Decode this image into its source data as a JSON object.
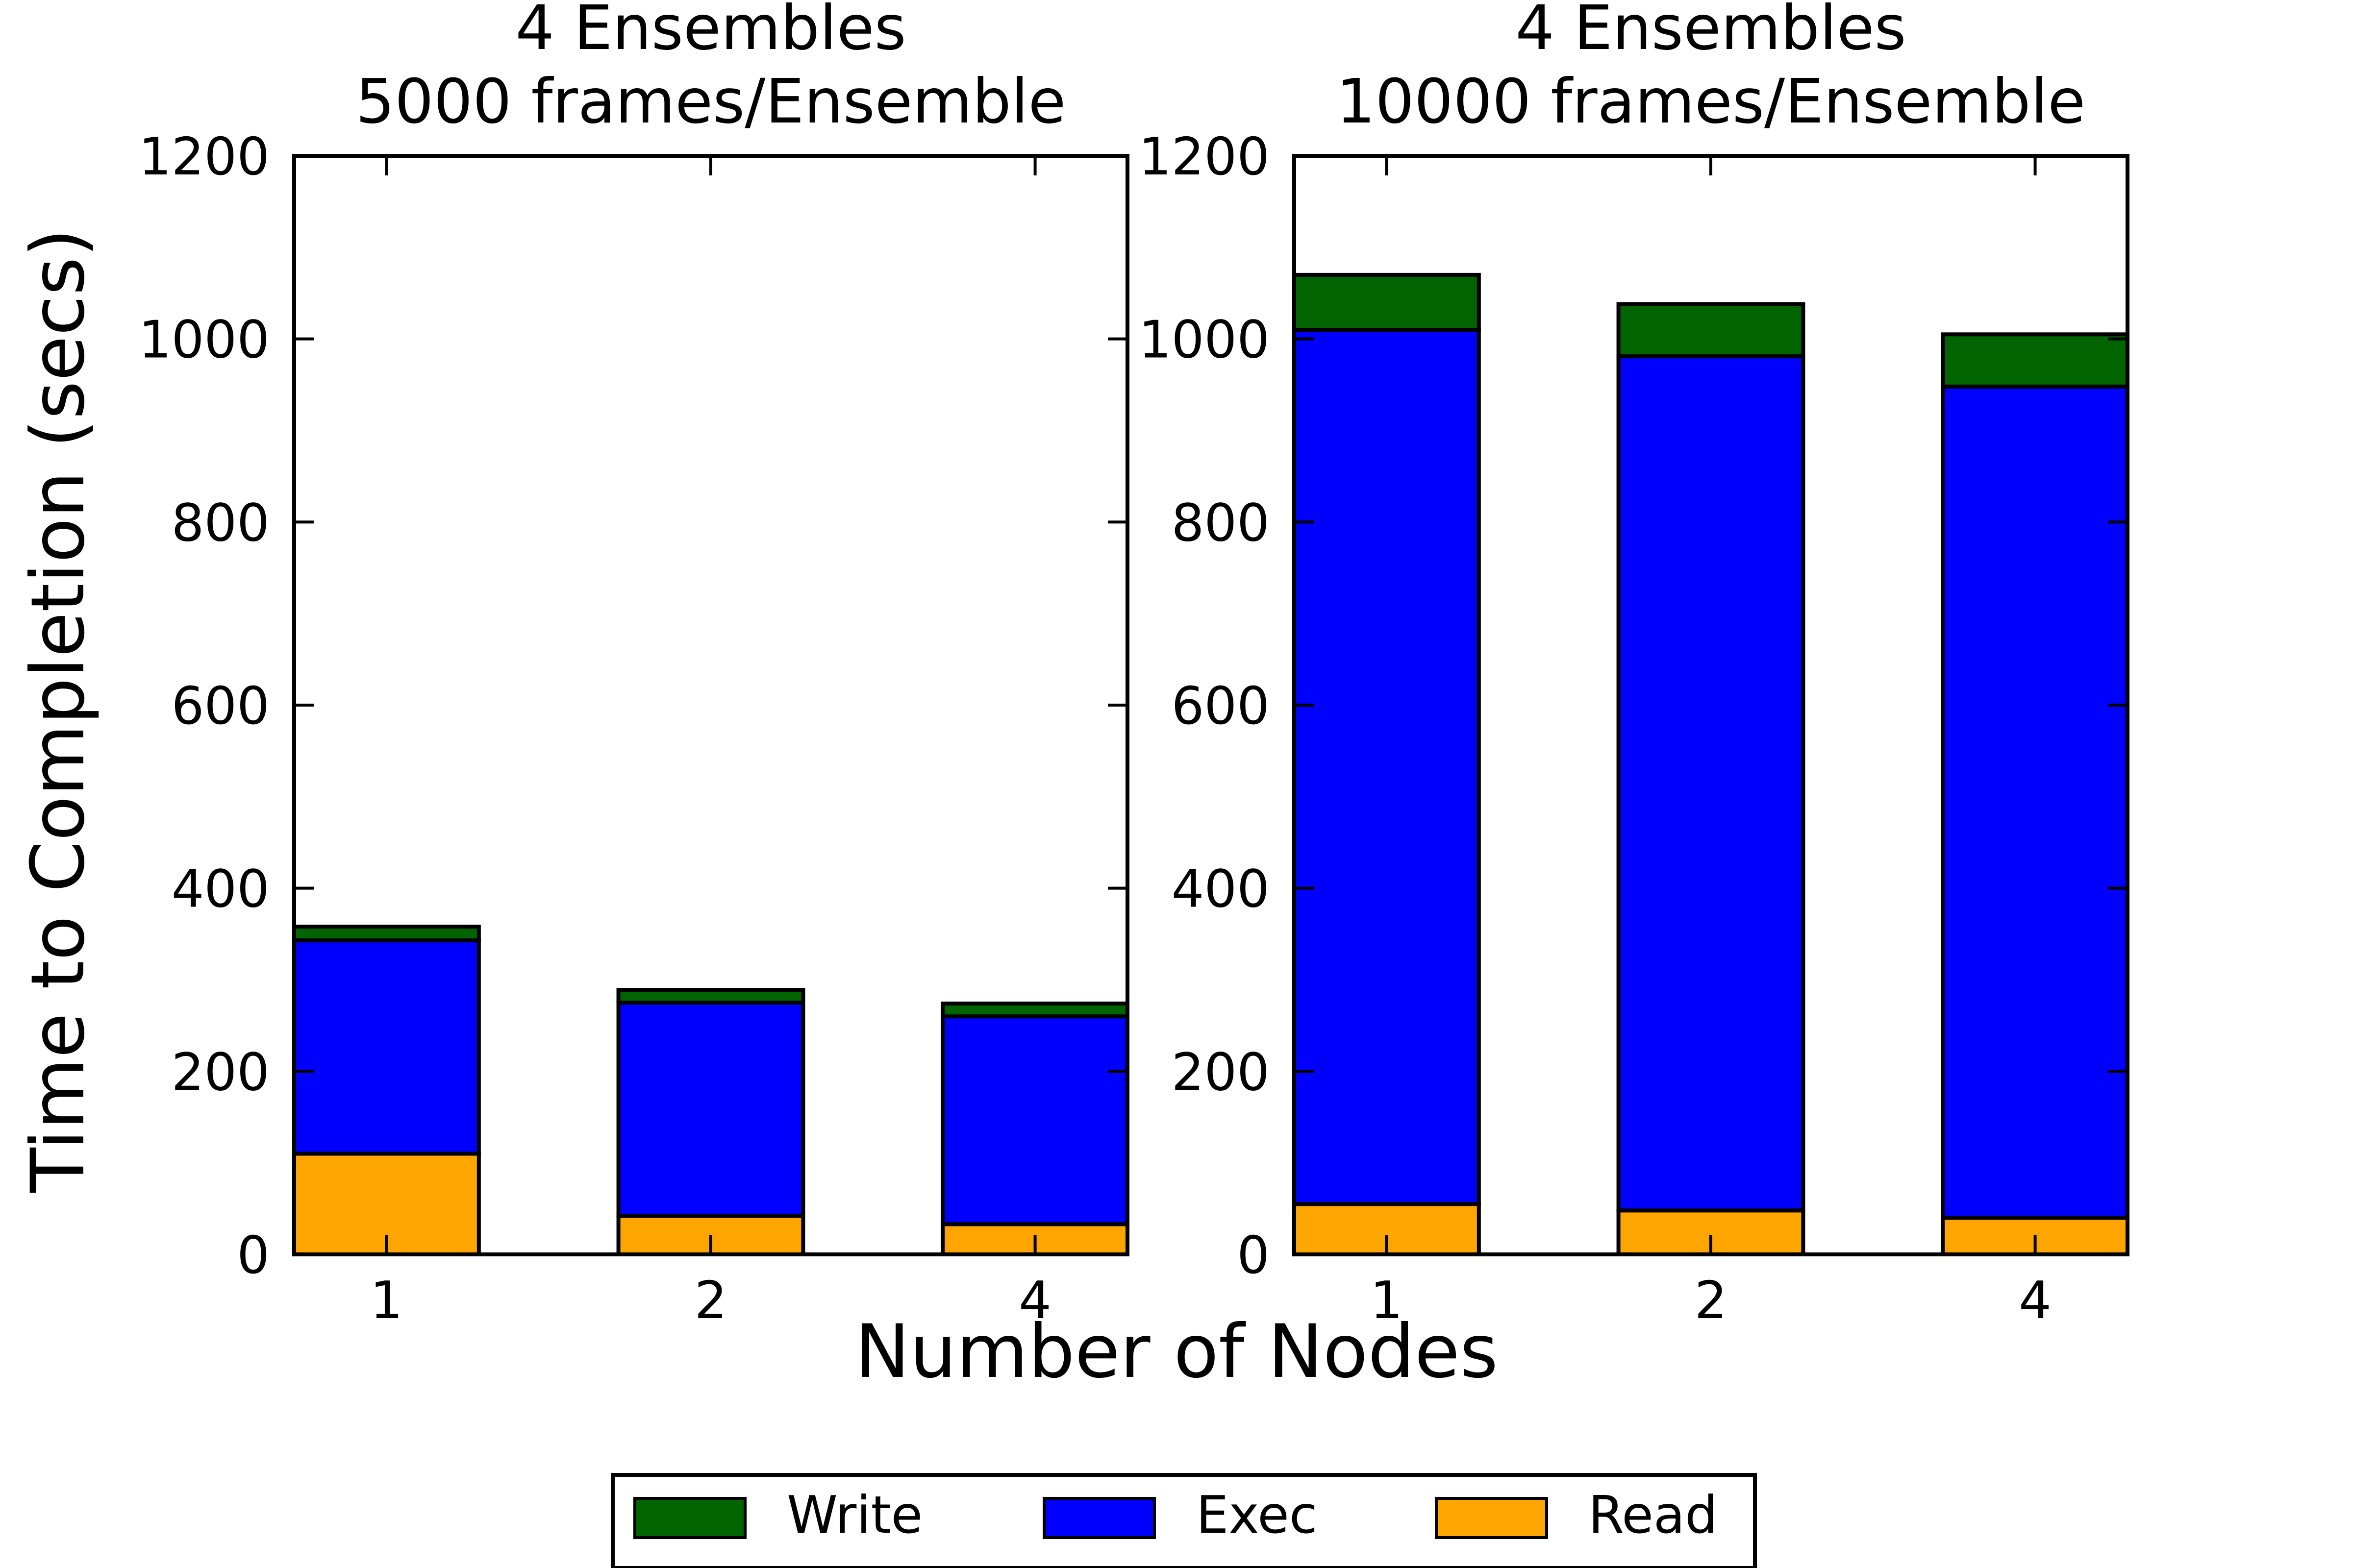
{
  "figure": {
    "ylabel": "Time to Completion (secs)",
    "xlabel": "Number of Nodes"
  },
  "legend": {
    "placement": "bottom-center",
    "entries": [
      {
        "label": "Write",
        "color": "#006400"
      },
      {
        "label": "Exec",
        "color": "#0000ff"
      },
      {
        "label": "Read",
        "color": "#ffa500"
      }
    ]
  },
  "chart_data": [
    {
      "type": "bar",
      "stacked": true,
      "title_line1": "4 Ensembles",
      "title_line2": "5000 frames/Ensemble",
      "categories": [
        "1",
        "2",
        "4"
      ],
      "ylim": [
        0,
        1200
      ],
      "yticks": [
        "0",
        "200",
        "400",
        "600",
        "800",
        "1000",
        "1200"
      ],
      "series": [
        {
          "name": "Read",
          "color": "#ffa500",
          "values": [
            110,
            42,
            33
          ]
        },
        {
          "name": "Exec",
          "color": "#0000ff",
          "values": [
            233,
            233,
            227
          ]
        },
        {
          "name": "Write",
          "color": "#006400",
          "values": [
            15,
            14,
            14
          ]
        }
      ]
    },
    {
      "type": "bar",
      "stacked": true,
      "title_line1": "4 Ensembles",
      "title_line2": "10000 frames/Ensemble",
      "categories": [
        "1",
        "2",
        "4"
      ],
      "ylim": [
        0,
        1200
      ],
      "yticks": [
        "0",
        "200",
        "400",
        "600",
        "800",
        "1000",
        "1200"
      ],
      "series": [
        {
          "name": "Read",
          "color": "#ffa500",
          "values": [
            55,
            48,
            40
          ]
        },
        {
          "name": "Exec",
          "color": "#0000ff",
          "values": [
            955,
            933,
            908
          ]
        },
        {
          "name": "Write",
          "color": "#006400",
          "values": [
            60,
            57,
            57
          ]
        }
      ]
    }
  ]
}
